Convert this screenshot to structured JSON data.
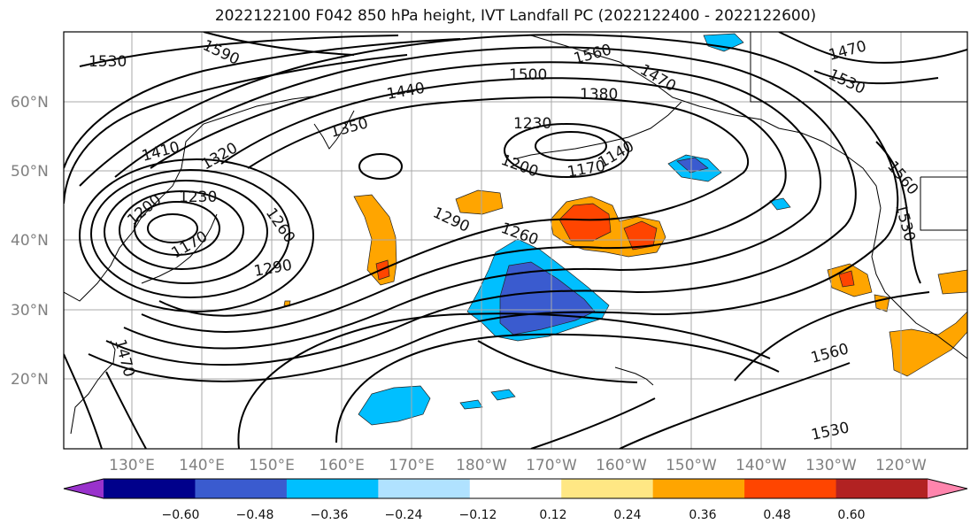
{
  "title": "2022122100 F042 850 hPa height, IVT Landfall PC (2022122400 - 2022122600)",
  "latitude_labels": [
    "60°N",
    "50°N",
    "40°N",
    "30°N",
    "20°N"
  ],
  "longitude_labels": [
    "130°E",
    "140°E",
    "150°E",
    "160°E",
    "170°E",
    "180°W",
    "170°W",
    "160°W",
    "150°W",
    "140°W",
    "130°W",
    "120°W"
  ],
  "contour_labels": [
    "1530",
    "1590",
    "1560",
    "1470",
    "1500",
    "1440",
    "1380",
    "1410",
    "1320",
    "1350",
    "1230",
    "1200",
    "1170",
    "1140",
    "1260",
    "1290",
    "1560",
    "1530",
    "1470",
    "1530",
    "1560",
    "1530",
    "1230",
    "1200",
    "1170",
    "1260",
    "1290"
  ],
  "colorbar": {
    "tick_labels": [
      "−0.60",
      "−0.48",
      "−0.36",
      "−0.24",
      "−0.12",
      "0.12",
      "0.24",
      "0.36",
      "0.48",
      "0.60"
    ],
    "colors": [
      "#9932CC",
      "#00008B",
      "#3A5BCF",
      "#00BFFF",
      "#B0E2FF",
      "#FFFFFF",
      "#FFE784",
      "#FFA500",
      "#FF4500",
      "#B22222",
      "#FF85AD"
    ]
  },
  "shade_colors": {
    "pos_low": "#FFA500",
    "pos_mid": "#FF4500",
    "neg_low": "#00BFFF",
    "neg_mid": "#3A5BCF",
    "neg_light": "#B0E2FF"
  }
}
